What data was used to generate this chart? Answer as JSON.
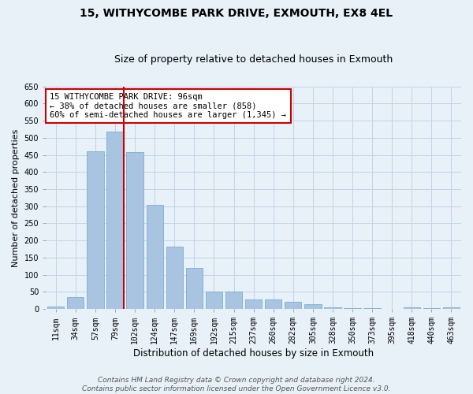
{
  "title": "15, WITHYCOMBE PARK DRIVE, EXMOUTH, EX8 4EL",
  "subtitle": "Size of property relative to detached houses in Exmouth",
  "xlabel": "Distribution of detached houses by size in Exmouth",
  "ylabel": "Number of detached properties",
  "categories": [
    "11sqm",
    "34sqm",
    "57sqm",
    "79sqm",
    "102sqm",
    "124sqm",
    "147sqm",
    "169sqm",
    "192sqm",
    "215sqm",
    "237sqm",
    "260sqm",
    "282sqm",
    "305sqm",
    "328sqm",
    "350sqm",
    "373sqm",
    "395sqm",
    "418sqm",
    "440sqm",
    "463sqm"
  ],
  "values": [
    7,
    35,
    460,
    518,
    458,
    305,
    181,
    120,
    50,
    50,
    29,
    29,
    20,
    14,
    4,
    2,
    2,
    1,
    6,
    2,
    4
  ],
  "bar_color": "#a8c4e0",
  "bar_edgecolor": "#7bafd4",
  "vline_x_index": 3,
  "vline_color": "#cc0000",
  "annotation_text": "15 WITHYCOMBE PARK DRIVE: 96sqm\n← 38% of detached houses are smaller (858)\n60% of semi-detached houses are larger (1,345) →",
  "annotation_box_facecolor": "#ffffff",
  "annotation_box_edgecolor": "#cc0000",
  "ylim_max": 650,
  "yticks": [
    0,
    50,
    100,
    150,
    200,
    250,
    300,
    350,
    400,
    450,
    500,
    550,
    600,
    650
  ],
  "grid_color": "#c0d4e8",
  "background_color": "#e8f0f8",
  "footer_line1": "Contains HM Land Registry data © Crown copyright and database right 2024.",
  "footer_line2": "Contains public sector information licensed under the Open Government Licence v3.0.",
  "title_fontsize": 10,
  "subtitle_fontsize": 9,
  "xlabel_fontsize": 8.5,
  "ylabel_fontsize": 8,
  "tick_fontsize": 7,
  "annotation_fontsize": 7.5,
  "footer_fontsize": 6.5
}
